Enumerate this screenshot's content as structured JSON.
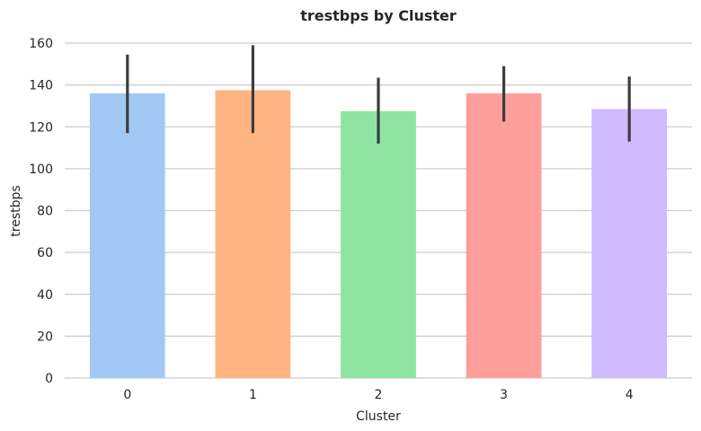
{
  "chart_data": {
    "type": "bar",
    "title": "trestbps by Cluster",
    "xlabel": "Cluster",
    "ylabel": "trestbps",
    "categories": [
      "0",
      "1",
      "2",
      "3",
      "4"
    ],
    "values": [
      136,
      137.5,
      127.5,
      136,
      128.5
    ],
    "error_low": [
      117,
      117,
      112,
      122.5,
      113
    ],
    "error_high": [
      154.5,
      159,
      143.5,
      149,
      144
    ],
    "ylim": [
      0,
      160
    ],
    "yticks": [
      "0",
      "20",
      "40",
      "60",
      "80",
      "100",
      "120",
      "140",
      "160"
    ],
    "grid": "horizontal",
    "colors": [
      "#a1c9f4",
      "#ffb482",
      "#8de5a1",
      "#ff9f9b",
      "#d0bbff"
    ]
  }
}
